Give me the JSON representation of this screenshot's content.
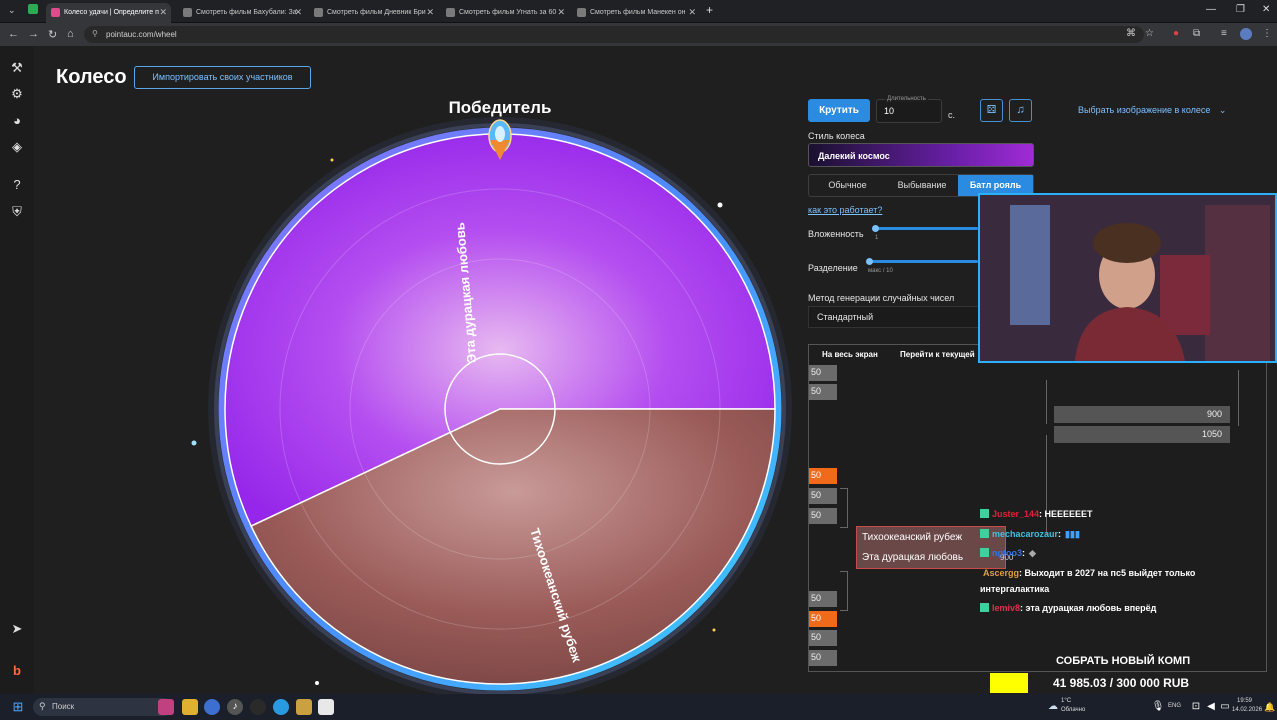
{
  "browser": {
    "tabs": [
      {
        "title": "Колесо удачи | Определите п"
      },
      {
        "title": "Смотреть фильм Бахубали: За"
      },
      {
        "title": "Смотреть фильм Дневник Бри"
      },
      {
        "title": "Смотреть фильм Угнать за 60"
      },
      {
        "title": "Смотреть фильм Манекен он"
      }
    ],
    "new_tab": "+",
    "url": "pointauc.com/wheel"
  },
  "sidebar": {
    "icons": [
      "gavel-icon",
      "gear-icon",
      "wheel-icon",
      "layers-icon",
      "help-icon",
      "shield-icon",
      "telegram-icon",
      "boosty-icon"
    ]
  },
  "header": {
    "title": "Колесо",
    "import_button": "Импортировать своих участников"
  },
  "wheel": {
    "winner_label": "Победитель",
    "segments": [
      {
        "label": "Эта дурацкая любовь",
        "color": "#a93ee8",
        "share": 0.57
      },
      {
        "label": "Тихоокеанский рубеж",
        "color": "#9a5d59",
        "share": 0.43
      }
    ]
  },
  "controls": {
    "spin_button": "Крутить",
    "duration_label": "Длительность",
    "duration_value": "10",
    "duration_unit": "с.",
    "image_select": "Выбрать изображение в колесе",
    "style_label": "Стиль колеса",
    "style_value": "Далекий космос",
    "modes": [
      "Обычное",
      "Выбывание",
      "Батл рояль"
    ],
    "active_mode": "Батл рояль",
    "how_link": "как это работает?",
    "nesting_label": "Вложенность",
    "nesting_value": "1",
    "split_label": "Разделение",
    "split_note": "макс / 10",
    "rng_label": "Метод генерации случайных чисел",
    "rng_value": "Стандартный"
  },
  "bracket": {
    "fullscreen": "На весь экран",
    "goto_current": "Перейти к текущей",
    "left_cells": [
      "50",
      "50",
      "50",
      "50",
      "50",
      "50",
      "50",
      "50",
      "50",
      "50"
    ],
    "right_cells": [
      "900",
      "1050"
    ],
    "duel": [
      "Тихоокеанский рубеж",
      "Эта дурацкая любовь"
    ],
    "duel_value": "900"
  },
  "chat": [
    {
      "nick": "Juster_144",
      "text": ": НЕЕЕЕЕЕТ",
      "color": "#e0203a"
    },
    {
      "nick": "mechacarozaur",
      "text": ":",
      "color": "#40c0e0"
    },
    {
      "nick": "ngtoo3",
      "text": ":",
      "color": "#3a70e0"
    },
    {
      "nick": "Ascergg",
      "text": ": Выходит в 2027 на пс5 выйдет только",
      "color": "#e0a040"
    },
    {
      "nick": "",
      "text": "интергалактика",
      "color": "#ffffff"
    },
    {
      "nick": "lemiv8",
      "text": ": эта дурацкая любовь вперёд",
      "color": "#e03050"
    }
  ],
  "goal": {
    "title": "СОБРАТЬ НОВЫЙ КОМП",
    "value": "41 985.03 / 300 000 RUB",
    "progress": 0.14
  },
  "taskbar": {
    "search": "Поиск",
    "weather_temp": "1°C",
    "weather_text": "Облачно",
    "lang": "ENG",
    "time": "19:59",
    "date": "14.02.2026"
  }
}
